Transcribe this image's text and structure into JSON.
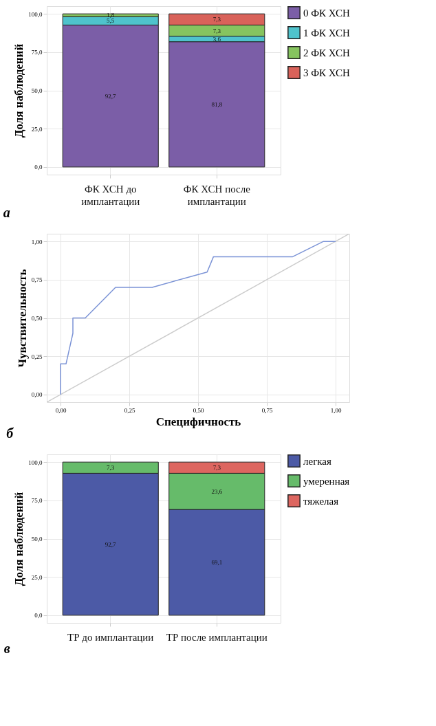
{
  "chart_data": [
    {
      "type": "bar",
      "stacked": true,
      "title": "а",
      "ylabel": "Доля наблюдений",
      "categories": [
        "ФК ХСН до\nимплантации",
        "ФК ХСН после\nимплантации"
      ],
      "ylim": [
        -5,
        105
      ],
      "yticks": [
        {
          "value": 0,
          "label": "0,0"
        },
        {
          "value": 25,
          "label": "25,0"
        },
        {
          "value": 50,
          "label": "50,0"
        },
        {
          "value": 75,
          "label": "75,0"
        },
        {
          "value": 100,
          "label": "100,0"
        }
      ],
      "grid": true,
      "legend": "right",
      "series": [
        {
          "name": "0 ФК ХСН",
          "color": "#7b5ea7",
          "values": [
            92.7,
            81.8
          ],
          "value_labels": [
            "92,7",
            "81,8"
          ]
        },
        {
          "name": "1 ФК ХСН",
          "color": "#4fc3cc",
          "values": [
            5.5,
            3.6
          ],
          "value_labels": [
            "5,5",
            "3,6"
          ]
        },
        {
          "name": "2 ФК ХСН",
          "color": "#86c45f",
          "values": [
            1.8,
            7.3
          ],
          "value_labels": [
            "1,8",
            "7,3"
          ]
        },
        {
          "name": "3 ФК ХСН",
          "color": "#d9625a",
          "values": [
            null,
            7.3
          ],
          "value_labels": [
            null,
            "7,3"
          ]
        }
      ]
    },
    {
      "type": "line",
      "title": "б",
      "xlabel": "Специфичность",
      "ylabel": "Чувствительность",
      "xlim": [
        -0.05,
        1.05
      ],
      "ylim": [
        -0.05,
        1.05
      ],
      "xticks": [
        {
          "value": 0,
          "label": "0,00"
        },
        {
          "value": 0.25,
          "label": "0,25"
        },
        {
          "value": 0.5,
          "label": "0,50"
        },
        {
          "value": 0.75,
          "label": "0,75"
        },
        {
          "value": 1,
          "label": "1,00"
        }
      ],
      "yticks": [
        {
          "value": 0,
          "label": "0,00"
        },
        {
          "value": 0.25,
          "label": "0,25"
        },
        {
          "value": 0.5,
          "label": "0,50"
        },
        {
          "value": 0.75,
          "label": "0,75"
        },
        {
          "value": 1,
          "label": "1,00"
        }
      ],
      "grid": true,
      "legend": false,
      "marker": "none",
      "line_style": "solid",
      "series": [
        {
          "color": "#cccccc",
          "x": [
            -0.05,
            1.05
          ],
          "values": [
            -0.05,
            1.05
          ]
        },
        {
          "color": "#7b93d6",
          "x": [
            0,
            0,
            0.02,
            0.045,
            0.045,
            0.09,
            0.2,
            0.333,
            0.533,
            0.556,
            0.844,
            0.956,
            1.0
          ],
          "values": [
            0,
            0.2,
            0.2,
            0.4,
            0.5,
            0.5,
            0.7,
            0.7,
            0.8,
            0.9,
            0.9,
            1.0,
            1.0
          ]
        }
      ]
    },
    {
      "type": "bar",
      "stacked": true,
      "title": "в",
      "ylabel": "Доля наблюдений",
      "categories": [
        "ТР до имплантации",
        "ТР после имплантации"
      ],
      "ylim": [
        -5,
        105
      ],
      "yticks": [
        {
          "value": 0,
          "label": "0,0"
        },
        {
          "value": 25,
          "label": "25,0"
        },
        {
          "value": 50,
          "label": "50,0"
        },
        {
          "value": 75,
          "label": "75,0"
        },
        {
          "value": 100,
          "label": "100,0"
        }
      ],
      "grid": true,
      "legend": "right",
      "series": [
        {
          "name": "легкая",
          "color": "#4c5aa6",
          "values": [
            92.7,
            69.1
          ],
          "value_labels": [
            "92,7",
            "69,1"
          ]
        },
        {
          "name": "умеренная",
          "color": "#66bb6a",
          "values": [
            7.3,
            23.6
          ],
          "value_labels": [
            "7,3",
            "23,6"
          ]
        },
        {
          "name": "тяжелая",
          "color": "#dd6660",
          "values": [
            null,
            7.3
          ],
          "value_labels": [
            null,
            "7,3"
          ]
        }
      ]
    }
  ]
}
